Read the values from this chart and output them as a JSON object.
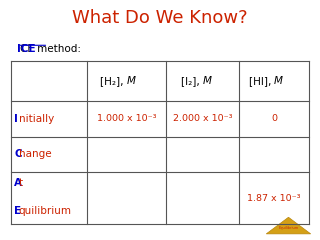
{
  "title": "What Do We Know?",
  "title_color": "#cc2200",
  "title_fontsize": 13,
  "bg_color": "#ffffff",
  "ice_color": "#0000cc",
  "method_text": " method:",
  "row_label_color": "#cc2200",
  "table_data": [
    [
      "1.000 x 10⁻³",
      "2.000 x 10⁻³",
      "0"
    ],
    [
      "",
      "",
      ""
    ],
    [
      "",
      "",
      "1.87 x 10⁻³"
    ]
  ],
  "table_line_color": "#555555",
  "col_bounds": [
    0.03,
    0.27,
    0.52,
    0.75,
    0.97
  ],
  "row_bounds": [
    0.75,
    0.58,
    0.43,
    0.28,
    0.06
  ]
}
